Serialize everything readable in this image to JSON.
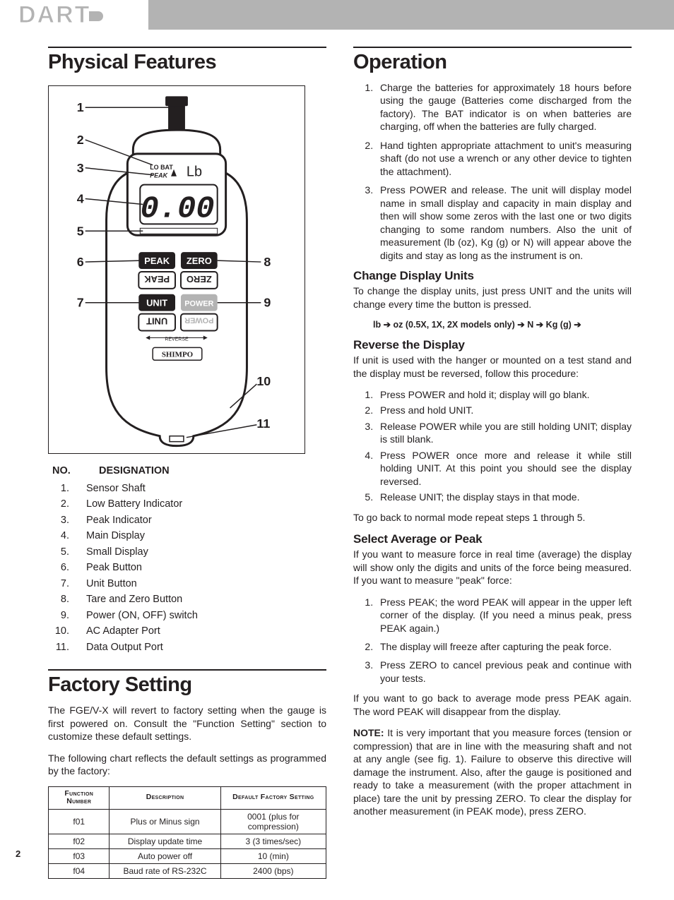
{
  "logo": "DART",
  "page_number": "2",
  "left": {
    "h_physical": "Physical Features",
    "diagram": {
      "callouts_left": [
        "1",
        "2",
        "3",
        "4",
        "5",
        "6",
        "7"
      ],
      "callouts_right": [
        "8",
        "9",
        "10",
        "11"
      ],
      "lcd_top": "LO BAT",
      "lcd_peak": "PEAK",
      "lcd_unit": "Lb",
      "lcd_main": "0.00",
      "btn_peak": "PEAK",
      "btn_zero": "ZERO",
      "btn_unit": "UNIT",
      "btn_power": "POWER",
      "reverse": "REVERSE",
      "brand": "SHIMPO"
    },
    "desig_header_no": "NO.",
    "desig_header_label": "DESIGNATION",
    "designations": [
      {
        "n": "1.",
        "d": "Sensor Shaft"
      },
      {
        "n": "2.",
        "d": "Low Battery Indicator"
      },
      {
        "n": "3.",
        "d": "Peak Indicator"
      },
      {
        "n": "4.",
        "d": "Main Display"
      },
      {
        "n": "5.",
        "d": "Small Display"
      },
      {
        "n": "6.",
        "d": "Peak Button"
      },
      {
        "n": "7.",
        "d": "Unit Button"
      },
      {
        "n": "8.",
        "d": "Tare and Zero Button"
      },
      {
        "n": "9.",
        "d": "Power (ON, OFF) switch"
      },
      {
        "n": "10.",
        "d": "AC Adapter Port"
      },
      {
        "n": "11.",
        "d": "Data Output Port"
      }
    ],
    "h_factory": "Factory Setting",
    "factory_p1": "The FGE/V-X will revert to factory setting when the gauge is first powered on. Consult the \"Function Setting\" section to customize these default settings.",
    "factory_p2": "The following chart reflects the default settings as programmed by the factory:",
    "table": {
      "headers": [
        "Function Number",
        "Description",
        "Default Factory Setting"
      ],
      "rows": [
        [
          "f01",
          "Plus or Minus sign",
          "0001 (plus for compression)"
        ],
        [
          "f02",
          "Display update time",
          "3 (3 times/sec)"
        ],
        [
          "f03",
          "Auto power off",
          "10 (min)"
        ],
        [
          "f04",
          "Baud rate of RS-232C",
          "2400 (bps)"
        ]
      ],
      "col_widths": [
        "22%",
        "40%",
        "38%"
      ]
    }
  },
  "right": {
    "h_operation": "Operation",
    "op_list": [
      "Charge the batteries for approximately 18 hours before using the gauge (Batteries come discharged from the factory).  The BAT indicator is on when batteries are charging, off when the batteries are fully charged.",
      "Hand tighten appropriate attachment to unit's measuring shaft (do not use a wrench or any other device to tighten the attachment).",
      "Press POWER and release. The unit will display model name in small display and capacity in main display and then will show some zeros with the last one or two digits changing to some random numbers. Also the unit of measurement (lb (oz), Kg (g) or N) will appear above the digits and stay as long as the instrument is on."
    ],
    "h_change": "Change Display Units",
    "change_p": "To change the display units, just press UNIT and the units will change every time the button is pressed.",
    "unit_seq": "lb ➔ oz (0.5X, 1X, 2X models only) ➔ N ➔ Kg (g) ➔",
    "h_reverse": "Reverse the Display",
    "reverse_p": "If unit is used with the hanger or mounted on a test stand and the display must be reversed, follow this procedure:",
    "reverse_list": [
      "Press POWER and hold it; display will go blank.",
      "Press and hold UNIT.",
      "Release POWER while you are still holding UNIT; display is still blank.",
      "Press POWER once more and release it while still holding UNIT. At this point you should see the display reversed.",
      "Release UNIT; the display stays in that mode."
    ],
    "reverse_back": "To go back to normal mode repeat steps 1 through 5.",
    "h_avg": "Select Average or Peak",
    "avg_p": "If you want to measure force in real time (average) the display will show only the digits and units of the force being measured. If you want to measure \"peak\" force:",
    "avg_list": [
      "Press PEAK; the word PEAK will appear in the upper left corner of the display. (If you need a minus peak, press PEAK again.)",
      "The display will freeze after capturing the peak force.",
      "Press ZERO to cancel previous peak and continue with your tests."
    ],
    "avg_back": "If you want to go back to average mode press PEAK again. The word PEAK will disappear from the display.",
    "note_label": "NOTE:",
    "note_text": " It is very important that you measure forces (tension or compression) that are in line with the measuring shaft and not at any angle (see fig. 1). Failure to observe this directive will damage the instrument. Also, after the gauge is positioned and ready to take a measurement (with the proper attachment in place) tare the unit by pressing ZERO. To clear the display for another measurement (in PEAK mode), press ZERO."
  }
}
